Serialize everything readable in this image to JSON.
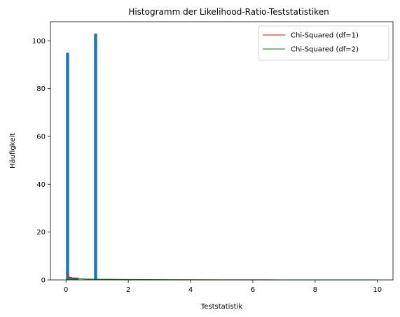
{
  "chart_data": {
    "type": "bar",
    "title": "Histogramm der Likelihood-Ratio-Teststatistiken",
    "xlabel": "Teststatistik",
    "ylabel": "Häufigkeit",
    "xlim": [
      -0.5,
      10.5
    ],
    "ylim": [
      0,
      108
    ],
    "xticks": [
      0,
      2,
      4,
      6,
      8,
      10
    ],
    "yticks": [
      0,
      20,
      40,
      60,
      80,
      100
    ],
    "grid": false,
    "legend_position": "top-right",
    "histogram": {
      "color": "#1f77b4",
      "bins": [
        {
          "x0": 0.0,
          "x1": 0.1,
          "count": 95
        },
        {
          "x0": 0.1,
          "x1": 0.2,
          "count": 1
        },
        {
          "x0": 0.2,
          "x1": 0.3,
          "count": 1
        },
        {
          "x0": 0.3,
          "x1": 0.4,
          "count": 1
        },
        {
          "x0": 0.9,
          "x1": 1.0,
          "count": 103
        }
      ]
    },
    "series": [
      {
        "name": "Chi-Squared (df=1)",
        "type": "line",
        "color": "#ff0000",
        "x": [
          0.02,
          0.05,
          0.1,
          0.2,
          0.3,
          0.5,
          0.7,
          1,
          1.5,
          2,
          3,
          4,
          5,
          6,
          7,
          8,
          9,
          10
        ],
        "y": [
          2.81,
          1.73,
          1.2,
          0.81,
          0.63,
          0.44,
          0.34,
          0.24,
          0.14,
          0.1,
          0.05,
          0.03,
          0.015,
          0.008,
          0.005,
          0.003,
          0.002,
          0.001
        ]
      },
      {
        "name": "Chi-Squared (df=2)",
        "type": "line",
        "color": "#008000",
        "x": [
          0,
          0.5,
          1,
          2,
          3,
          4,
          5,
          6,
          7,
          8,
          9,
          10
        ],
        "y": [
          0.5,
          0.39,
          0.3,
          0.18,
          0.11,
          0.07,
          0.04,
          0.025,
          0.015,
          0.009,
          0.006,
          0.003
        ]
      }
    ]
  }
}
